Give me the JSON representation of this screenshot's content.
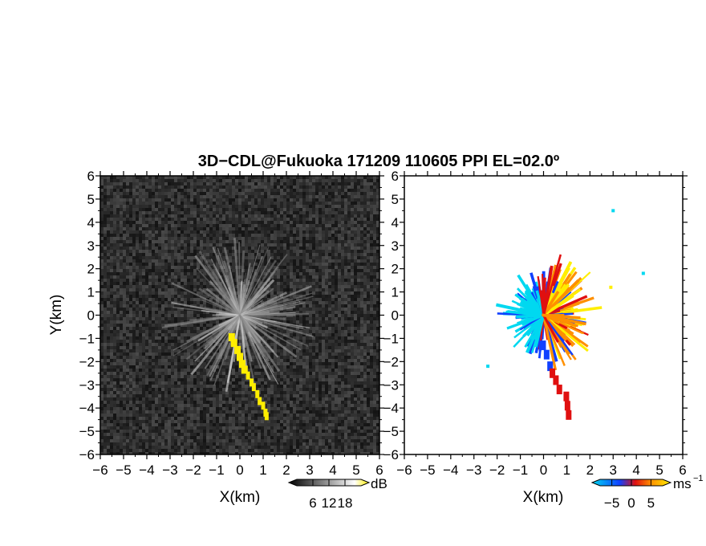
{
  "figure": {
    "title": "3D−CDL@Fukuoka 171209 110605 PPI EL=02.0º"
  },
  "chart_data": [
    {
      "type": "heatmap",
      "panel": "left",
      "quantity": "SNR",
      "xlabel": "X(km)",
      "ylabel": "Y(km)",
      "xlim": [
        -6,
        6
      ],
      "ylim": [
        -6,
        6
      ],
      "x_ticks": [
        "−6",
        "−5",
        "−4",
        "−3",
        "−2",
        "−1",
        "0",
        "1",
        "2",
        "3",
        "4",
        "5",
        "6"
      ],
      "y_ticks": [
        "6",
        "5",
        "4",
        "3",
        "2",
        "1",
        "0",
        "−1",
        "−2",
        "−3",
        "−4",
        "−5",
        "−6"
      ],
      "background": "#2b2b2b",
      "highlight_color": "#ffee00",
      "colorbar": {
        "unit": "dB",
        "tick_labels": [
          "6",
          "12",
          "18"
        ],
        "range": [
          0,
          24
        ],
        "colors": [
          "#000000",
          "#ffffff",
          "#ffee00"
        ]
      }
    },
    {
      "type": "heatmap",
      "panel": "right",
      "quantity": "Doppler velocity",
      "xlabel": "X(km)",
      "ylabel": "",
      "xlim": [
        -6,
        6
      ],
      "ylim": [
        -6,
        6
      ],
      "x_ticks": [
        "−6",
        "−5",
        "−4",
        "−3",
        "−2",
        "−1",
        "0",
        "1",
        "2",
        "3",
        "4",
        "5",
        "6"
      ],
      "y_ticks": [
        "6",
        "5",
        "4",
        "3",
        "2",
        "1",
        "0",
        "−1",
        "−2",
        "−3",
        "−4",
        "−5",
        "−6"
      ],
      "background": "#ffffff",
      "colorbar": {
        "unit": "ms",
        "unit_exponent": "−1",
        "tick_labels": [
          "−5",
          "0",
          "5"
        ],
        "range": [
          -8,
          8
        ],
        "colors": [
          "#00d8f0",
          "#1040ff",
          "#e01010",
          "#ff9000",
          "#ffee00"
        ]
      }
    }
  ]
}
